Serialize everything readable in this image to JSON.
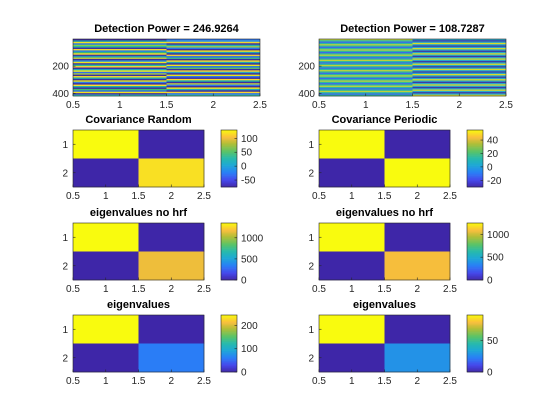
{
  "chart_data": [
    {
      "type": "heatmap",
      "title": "Detection Power = 246.9264",
      "x_ticks": [
        "0.5",
        "1",
        "1.5",
        "2",
        "2.5"
      ],
      "y_ticks": [
        "200",
        "400"
      ],
      "xlim": [
        0.5,
        2.5
      ],
      "ylim": [
        0,
        420
      ],
      "columns": 2,
      "stripe_style": "random",
      "col_left_colors": [
        "#3c2a9f",
        "#1f9aaa",
        "#f3e41f",
        "#2a72ea",
        "#7ed24a",
        "#20b6a0",
        "#3e2b9f",
        "#f6d82c",
        "#277de8",
        "#35b77d",
        "#fedc2b",
        "#3a3ca5",
        "#1fa0b1",
        "#c7c93a",
        "#3b2b9b",
        "#2c96d8",
        "#f1e31c",
        "#3a34a3",
        "#29c190",
        "#fcd02e",
        "#3d2aa0",
        "#1aa6b8",
        "#f7f01a",
        "#2e6cec",
        "#a2c944",
        "#3e2a9e",
        "#f5d52c",
        "#21a8ae",
        "#3b2e9e",
        "#e4e020",
        "#2b7ce8",
        "#3d2a9e",
        "#fede2b",
        "#20b0a8",
        "#3f2b9d",
        "#42bd6c",
        "#2a6ee8",
        "#f4e01c",
        "#3c2b9f",
        "#31b9b9"
      ],
      "col_right_colors": [
        "#2a70e8",
        "#3b9ad9",
        "#f2d52d",
        "#3f2e9d",
        "#22b0ae",
        "#9cca47",
        "#2778e8",
        "#3e2b9d",
        "#f6e01e",
        "#1da2b7",
        "#3a2fa2",
        "#f0cd32",
        "#2b6ce8",
        "#3dba82",
        "#3c2b9c",
        "#fadc2a",
        "#1fa6b4",
        "#3d2b9e",
        "#efe51c",
        "#2474e6",
        "#5ac16a",
        "#3e2a9f",
        "#f9d42c",
        "#27a4c4",
        "#3b2da0",
        "#e6e11e",
        "#2a72e8",
        "#3e2b9e",
        "#fdd72d",
        "#1eaeae",
        "#3d2c9f",
        "#b8c841",
        "#2c76e6",
        "#3e2a9f",
        "#f3e31c",
        "#22a8b6",
        "#3c2b9e",
        "#fbd62c",
        "#2b6fe8",
        "#38bba6"
      ]
    },
    {
      "type": "heatmap",
      "title": "Detection Power = 108.7287",
      "x_ticks": [
        "0.5",
        "1",
        "1.5",
        "2",
        "2.5"
      ],
      "y_ticks": [
        "200",
        "400"
      ],
      "xlim": [
        0.5,
        2.5
      ],
      "ylim": [
        0,
        420
      ],
      "columns": 2,
      "stripe_style": "periodic",
      "col_left_colors": [
        "#bdd23b",
        "#2fb6a0",
        "#3a6ce6",
        "#2fb6a0"
      ],
      "col_right_colors": [
        "#d9da2c",
        "#2aa7c8",
        "#3b3ba6",
        "#2aa7c8"
      ]
    },
    {
      "type": "heatmap",
      "title": "Covariance Random",
      "x_ticks": [
        "0.5",
        "1",
        "1.5",
        "2",
        "2.5"
      ],
      "y_ticks": [
        "1",
        "2"
      ],
      "xlim": [
        0.5,
        2.5
      ],
      "ylim": [
        0.5,
        2.5
      ],
      "matrix": [
        [
          130,
          -75
        ],
        [
          -75,
          118
        ]
      ],
      "clim": [
        -75,
        130
      ],
      "colorbar_ticks": [
        100,
        50,
        0,
        -50
      ]
    },
    {
      "type": "heatmap",
      "title": "Covariance Periodic",
      "x_ticks": [
        "0.5",
        "1",
        "1.5",
        "2",
        "2.5"
      ],
      "y_ticks": [
        "1",
        "2"
      ],
      "xlim": [
        0.5,
        2.5
      ],
      "ylim": [
        0.5,
        2.5
      ],
      "matrix": [
        [
          55,
          -30
        ],
        [
          -30,
          55
        ]
      ],
      "clim": [
        -30,
        55
      ],
      "colorbar_ticks": [
        40,
        20,
        0,
        -20
      ]
    },
    {
      "type": "heatmap",
      "title": "eigenvalues no hrf",
      "x_ticks": [
        "0.5",
        "1",
        "1.5",
        "2",
        "2.5"
      ],
      "y_ticks": [
        "1",
        "2"
      ],
      "xlim": [
        0.5,
        2.5
      ],
      "ylim": [
        0.5,
        2.5
      ],
      "matrix": [
        [
          1350,
          0
        ],
        [
          0,
          1150
        ]
      ],
      "clim": [
        0,
        1350
      ],
      "colorbar_ticks": [
        1000,
        500,
        0
      ]
    },
    {
      "type": "heatmap",
      "title": "eigenvalues no hrf",
      "x_ticks": [
        "0.5",
        "1",
        "1.5",
        "2",
        "2.5"
      ],
      "y_ticks": [
        "1",
        "2"
      ],
      "xlim": [
        0.5,
        2.5
      ],
      "ylim": [
        0.5,
        2.5
      ],
      "matrix": [
        [
          1250,
          0
        ],
        [
          0,
          1080
        ]
      ],
      "clim": [
        0,
        1250
      ],
      "colorbar_ticks": [
        1000,
        500,
        0
      ]
    },
    {
      "type": "heatmap",
      "title": "eigenvalues",
      "x_ticks": [
        "0.5",
        "1",
        "1.5",
        "2",
        "2.5"
      ],
      "y_ticks": [
        "1",
        "2"
      ],
      "xlim": [
        0.5,
        2.5
      ],
      "ylim": [
        0.5,
        2.5
      ],
      "matrix": [
        [
          245,
          0
        ],
        [
          0,
          60
        ]
      ],
      "clim": [
        0,
        245
      ],
      "colorbar_ticks": [
        200,
        100,
        0
      ]
    },
    {
      "type": "heatmap",
      "title": "eigenvalues",
      "x_ticks": [
        "0.5",
        "1",
        "1.5",
        "2",
        "2.5"
      ],
      "y_ticks": [
        "1",
        "2"
      ],
      "xlim": [
        0.5,
        2.5
      ],
      "ylim": [
        0.5,
        2.5
      ],
      "matrix": [
        [
          90,
          0
        ],
        [
          0,
          28
        ]
      ],
      "clim": [
        0,
        90
      ],
      "colorbar_ticks": [
        50,
        0
      ]
    }
  ]
}
